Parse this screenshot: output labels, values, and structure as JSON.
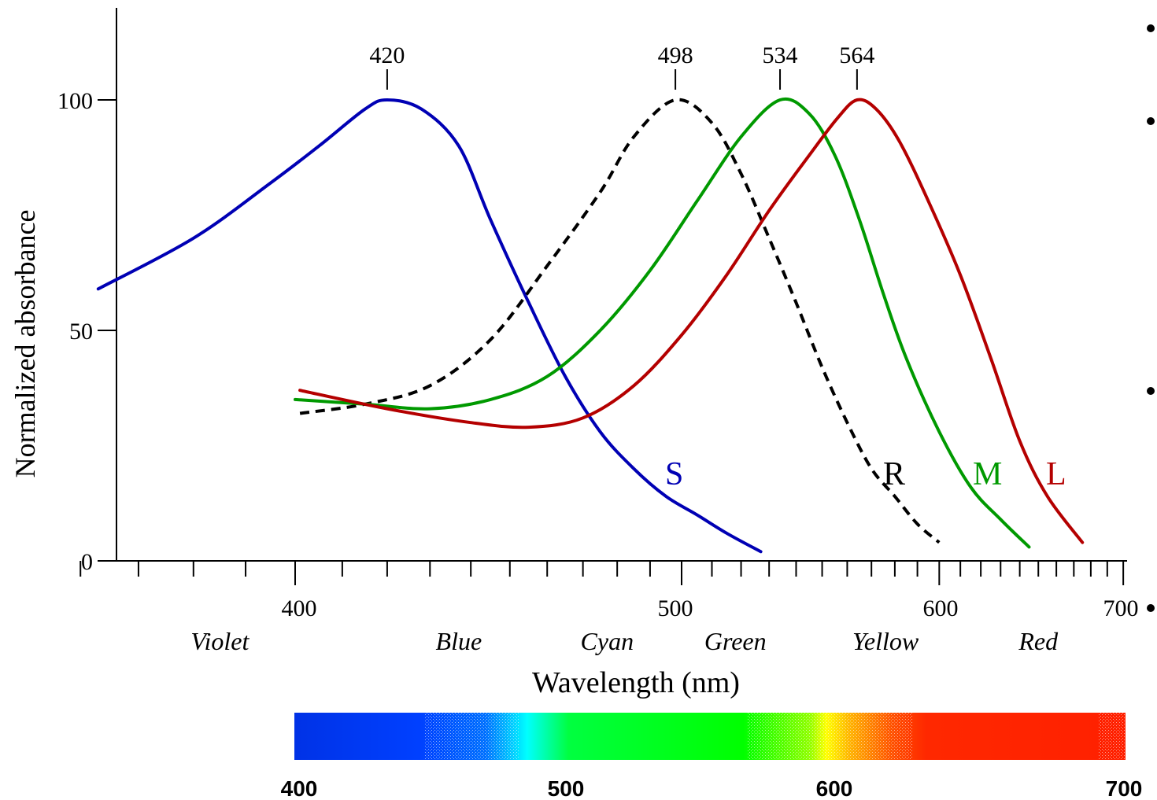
{
  "chart_data": {
    "type": "line",
    "xlabel": "Wavelength (nm)",
    "ylabel": "Normalized absorbance",
    "ylim": [
      0,
      100
    ],
    "x_ticks_labeled": [
      "400",
      "500",
      "600",
      "700"
    ],
    "y_ticks_labeled": [
      "0",
      "50",
      "100"
    ],
    "x_scale": "reciprocal (wavenumber)",
    "grid": false,
    "peak_labels": [
      "420",
      "498",
      "534",
      "564"
    ],
    "color_names": [
      {
        "label": "Violet",
        "wavelength": 385
      },
      {
        "label": "Blue",
        "wavelength": 437
      },
      {
        "label": "Cyan",
        "wavelength": 477
      },
      {
        "label": "Green",
        "wavelength": 518
      },
      {
        "label": "Yellow",
        "wavelength": 576
      },
      {
        "label": "Red",
        "wavelength": 650
      }
    ],
    "series": [
      {
        "name": "S",
        "color": "#0000b4",
        "style": "solid",
        "x": [
          363,
          380,
          395,
          405,
          415,
          420,
          428,
          437,
          445,
          455,
          465,
          475,
          485,
          495,
          505,
          515,
          527
        ],
        "y": [
          59,
          70,
          82,
          90,
          98,
          100,
          98,
          90,
          74,
          56,
          40,
          28,
          20,
          14,
          10,
          6,
          2
        ]
      },
      {
        "name": "R",
        "color": "#000000",
        "style": "dashed",
        "x": [
          401,
          415,
          430,
          445,
          460,
          475,
          485,
          498,
          510,
          520,
          530,
          540,
          550,
          560,
          570,
          580,
          590,
          600
        ],
        "y": [
          32,
          34,
          38,
          48,
          64,
          80,
          92,
          100,
          95,
          84,
          70,
          56,
          42,
          30,
          20,
          14,
          8,
          4
        ]
      },
      {
        "name": "M",
        "color": "#009900",
        "style": "solid",
        "x": [
          400,
          415,
          430,
          445,
          460,
          475,
          490,
          505,
          520,
          534,
          545,
          555,
          565,
          575,
          585,
          600,
          615,
          630,
          645
        ],
        "y": [
          35,
          34,
          33,
          35,
          40,
          50,
          63,
          78,
          92,
          100,
          97,
          88,
          74,
          58,
          44,
          28,
          16,
          9,
          3
        ]
      },
      {
        "name": "L",
        "color": "#b40000",
        "style": "solid",
        "x": [
          401,
          420,
          440,
          455,
          470,
          485,
          500,
          515,
          530,
          545,
          556,
          564,
          572,
          582,
          595,
          610,
          625,
          640,
          655,
          675
        ],
        "y": [
          37,
          33,
          30,
          29,
          31,
          38,
          49,
          62,
          76,
          88,
          96,
          100,
          98,
          91,
          78,
          62,
          44,
          26,
          14,
          4
        ]
      }
    ],
    "spectrum_bar": {
      "tick_labels": [
        "400",
        "500",
        "600",
        "700"
      ]
    }
  }
}
